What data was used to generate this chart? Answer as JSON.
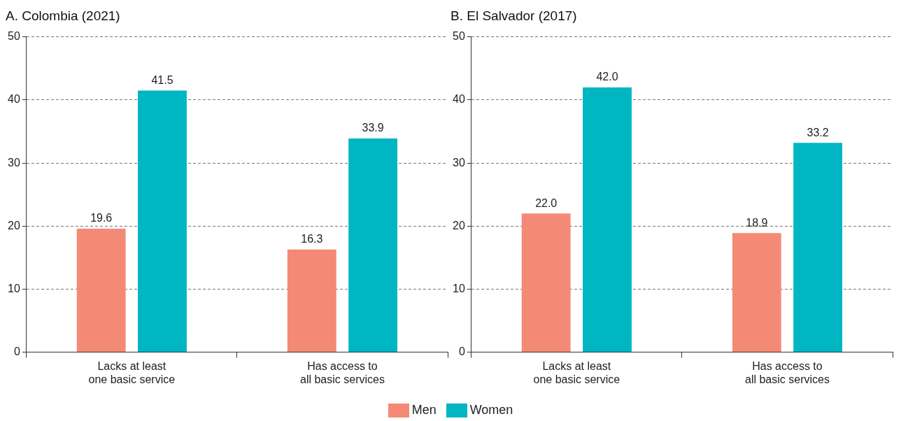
{
  "chart_data": [
    {
      "type": "bar",
      "title": "A. Colombia (2021)",
      "categories": [
        "Lacks at least one basic service",
        "Has access to all basic services"
      ],
      "series": [
        {
          "name": "Men",
          "color": "#f48a76",
          "values": [
            19.6,
            16.3
          ],
          "value_labels": [
            "19.6",
            "16.3"
          ]
        },
        {
          "name": "Women",
          "color": "#00b6c3",
          "values": [
            41.5,
            33.9
          ],
          "value_labels": [
            "41.5",
            "33.9"
          ]
        }
      ],
      "ylim": [
        0,
        50
      ],
      "yticks": [
        0,
        10,
        20,
        30,
        40,
        50
      ],
      "grid": "y",
      "legend": "bottom"
    },
    {
      "type": "bar",
      "title": "B. El Salvador (2017)",
      "categories": [
        "Lacks at least one basic service",
        "Has access to all basic services"
      ],
      "series": [
        {
          "name": "Men",
          "color": "#f48a76",
          "values": [
            22.0,
            18.9
          ],
          "value_labels": [
            "22.0",
            "18.9"
          ]
        },
        {
          "name": "Women",
          "color": "#00b6c3",
          "values": [
            42.0,
            33.2
          ],
          "value_labels": [
            "42.0",
            "33.2"
          ]
        }
      ],
      "ylim": [
        0,
        50
      ],
      "yticks": [
        0,
        10,
        20,
        30,
        40,
        50
      ],
      "grid": "y",
      "legend": "bottom"
    }
  ]
}
